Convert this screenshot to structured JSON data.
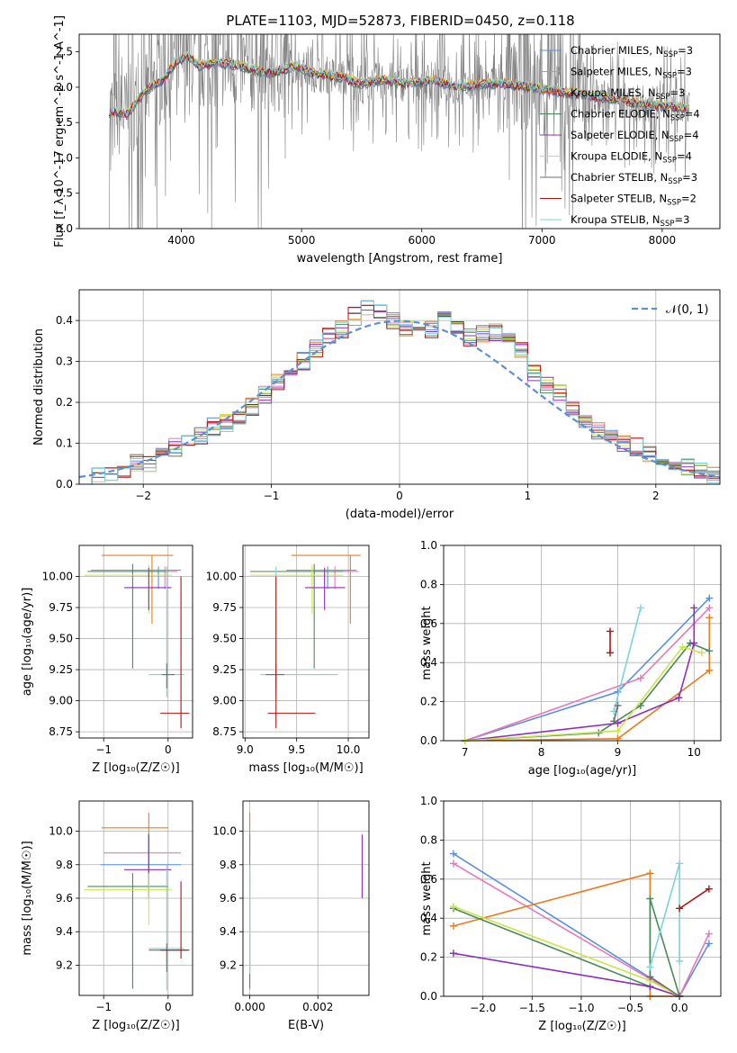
{
  "title": "PLATE=1103, MJD=52873, FIBERID=0450, z=0.118",
  "colors": {
    "chabrier_miles": "#5b8fd9",
    "salpeter_miles": "#e67ab8",
    "kroupa_miles": "#e87d1e",
    "chabrier_elodie": "#4a8a5a",
    "salpeter_elodie": "#8b2fb8",
    "kroupa_elodie": "#c8e64a",
    "chabrier_stelib": "#6e6e6e",
    "salpeter_stelib": "#b01515",
    "kroupa_stelib": "#7bd3dc",
    "data_gray": "#808080"
  },
  "chart_data": [
    {
      "type": "line",
      "xlabel": "wavelength [Angstrom, rest frame]",
      "ylabel": "Flux [f_λ 10^-17 erg cm^-2 s^-1 A^-1]",
      "xlim": [
        3150,
        8480
      ],
      "ylim": [
        0,
        2.75
      ],
      "xticks": [
        "4000",
        "5000",
        "6000",
        "7000",
        "8000"
      ],
      "yticks": [
        "0.0",
        "0.5",
        "1.0",
        "1.5",
        "2.0",
        "2.5"
      ],
      "legend": "right",
      "grid": false,
      "series": [
        {
          "name": "Chabrier MILES, N_SSP=3",
          "label": "Chabrier MILES, N",
          "sub": "SSP",
          "n": "=3",
          "color": "#5b8fd9"
        },
        {
          "name": "Salpeter MILES, N_SSP=3",
          "label": "Salpeter MILES, N",
          "sub": "SSP",
          "n": "=3",
          "color": "#e67ab8"
        },
        {
          "name": "Kroupa MILES, N_SSP=3",
          "label": "Kroupa MILES, N",
          "sub": "SSP",
          "n": "=3",
          "color": "#e87d1e"
        },
        {
          "name": "Chabrier ELODIE, N_SSP=4",
          "label": "Chabrier ELODIE, N",
          "sub": "SSP",
          "n": "=4",
          "color": "#4a8a5a"
        },
        {
          "name": "Salpeter ELODIE, N_SSP=4",
          "label": "Salpeter ELODIE, N",
          "sub": "SSP",
          "n": "=4",
          "color": "#8b2fb8"
        },
        {
          "name": "Kroupa ELODIE, N_SSP=4",
          "label": "Kroupa ELODIE, N",
          "sub": "SSP",
          "n": "=4",
          "color": "#c8e64a"
        },
        {
          "name": "Chabrier STELIB, N_SSP=3",
          "label": "Chabrier STELIB, N",
          "sub": "SSP",
          "n": "=3",
          "color": "#6e6e6e"
        },
        {
          "name": "Salpeter STELIB, N_SSP=2",
          "label": "Salpeter STELIB, N",
          "sub": "SSP",
          "n": "=2",
          "color": "#b01515"
        },
        {
          "name": "Kroupa STELIB, N_SSP=3",
          "label": "Kroupa STELIB, N",
          "sub": "SSP",
          "n": "=3",
          "color": "#7bd3dc"
        }
      ],
      "model_curve": {
        "x": [
          3400,
          3550,
          3700,
          3850,
          3950,
          4050,
          4150,
          4300,
          4500,
          4700,
          4850,
          4950,
          5100,
          5300,
          5500,
          5700,
          5900,
          6100,
          6300,
          6500,
          6700,
          6900,
          7100,
          7300,
          7500,
          7700,
          7900,
          8100,
          8200
        ],
        "y": [
          1.65,
          1.62,
          1.95,
          2.1,
          2.35,
          2.45,
          2.3,
          2.35,
          2.3,
          2.2,
          2.25,
          2.3,
          2.2,
          2.15,
          2.05,
          2.1,
          2.05,
          2.1,
          2.0,
          2.05,
          2.05,
          2.0,
          1.95,
          1.9,
          1.85,
          1.8,
          1.75,
          1.72,
          1.7
        ]
      },
      "model_gaps": [
        [
          3400,
          3850
        ],
        [
          7200,
          7420
        ]
      ]
    },
    {
      "type": "bar",
      "xlabel": "(data-model)/error",
      "ylabel": "Normed distribution",
      "xlim": [
        -2.5,
        2.5
      ],
      "ylim": [
        0,
        0.475
      ],
      "xticks": [
        "−2",
        "−1",
        "0",
        "1",
        "2"
      ],
      "yticks": [
        "0.0",
        "0.1",
        "0.2",
        "0.3",
        "0.4"
      ],
      "grid": true,
      "legend": "top-right",
      "legend_label": "𝒩(0, 1)",
      "bin_width": 0.1,
      "bins_start": -2.5,
      "histogram": [
        0.02,
        0.02,
        0.02,
        0.03,
        0.05,
        0.05,
        0.08,
        0.09,
        0.1,
        0.12,
        0.14,
        0.15,
        0.16,
        0.19,
        0.22,
        0.25,
        0.26,
        0.3,
        0.33,
        0.36,
        0.38,
        0.41,
        0.43,
        0.42,
        0.4,
        0.38,
        0.37,
        0.38,
        0.4,
        0.38,
        0.36,
        0.37,
        0.37,
        0.36,
        0.33,
        0.27,
        0.24,
        0.22,
        0.18,
        0.16,
        0.13,
        0.12,
        0.1,
        0.09,
        0.07,
        0.06,
        0.04,
        0.04,
        0.03,
        0.02
      ]
    },
    {
      "type": "scatter",
      "xlabel": "Z [log₁₀(Z/Z☉)]",
      "ylabel": "age  [log₁₀(age/yr)]",
      "xlim": [
        -1.38,
        0.38
      ],
      "ylim": [
        8.7,
        10.25
      ],
      "xticks": [
        "−1",
        "0"
      ],
      "yticks": [
        "8.75",
        "9.00",
        "9.25",
        "9.50",
        "9.75",
        "10.00"
      ],
      "grid": true,
      "errorbars": [
        {
          "series": 2,
          "x": -0.25,
          "y": 10.17,
          "xe": [
            -1.03,
            0.08
          ],
          "ye": [
            9.62,
            10.17
          ]
        },
        {
          "series": 0,
          "x": -0.15,
          "y": 10.05,
          "xe": [
            -1.2,
            0.2
          ],
          "ye": [
            9.9,
            10.08
          ]
        },
        {
          "series": 1,
          "x": -0.05,
          "y": 10.04,
          "xe": [
            -0.95,
            0.15
          ],
          "ye": [
            9.9,
            10.08
          ]
        },
        {
          "series": 3,
          "x": -0.55,
          "y": 10.04,
          "xe": [
            -1.25,
            0.0
          ],
          "ye": [
            9.26,
            10.1
          ]
        },
        {
          "series": 5,
          "x": -0.3,
          "y": 10.01,
          "xe": [
            -1.3,
            0.05
          ],
          "ye": [
            9.7,
            10.09
          ]
        },
        {
          "series": 4,
          "x": -0.3,
          "y": 9.91,
          "xe": [
            -0.68,
            0.05
          ],
          "ye": [
            9.73,
            10.07
          ]
        },
        {
          "series": 8,
          "x": -0.02,
          "y": 9.21,
          "xe": [
            -0.3,
            0.25
          ],
          "ye": [
            9.03,
            10.08
          ]
        },
        {
          "series": 6,
          "x": -0.02,
          "y": 9.21,
          "xe": [
            -0.1,
            0.1
          ],
          "ye": [
            9.1,
            9.3
          ]
        },
        {
          "series": 7,
          "x": 0.2,
          "y": 8.9,
          "xe": [
            -0.12,
            0.33
          ],
          "ye": [
            8.78,
            10.0
          ]
        }
      ]
    },
    {
      "type": "scatter",
      "xlabel": "mass [log₁₀(M/M☉)]",
      "ylabel": "",
      "xlim": [
        8.98,
        10.2
      ],
      "ylim": [
        8.7,
        10.25
      ],
      "xticks": [
        "9.0",
        "9.5",
        "10.0"
      ],
      "yticks": [
        "8.75",
        "9.00",
        "9.25",
        "9.50",
        "9.75",
        "10.00"
      ],
      "grid": true,
      "errorbars": [
        {
          "series": 2,
          "x": 10.02,
          "y": 10.17,
          "xe": [
            9.45,
            10.12
          ],
          "ye": [
            9.62,
            10.17
          ]
        },
        {
          "series": 0,
          "x": 9.8,
          "y": 10.05,
          "xe": [
            9.4,
            10.08
          ],
          "ye": [
            9.9,
            10.08
          ]
        },
        {
          "series": 1,
          "x": 9.87,
          "y": 10.04,
          "xe": [
            9.6,
            10.1
          ],
          "ye": [
            9.9,
            10.08
          ]
        },
        {
          "series": 3,
          "x": 9.67,
          "y": 10.04,
          "xe": [
            9.05,
            9.95
          ],
          "ye": [
            9.26,
            10.1
          ]
        },
        {
          "series": 5,
          "x": 9.65,
          "y": 10.01,
          "xe": [
            9.05,
            9.95
          ],
          "ye": [
            9.7,
            10.09
          ]
        },
        {
          "series": 4,
          "x": 9.77,
          "y": 9.91,
          "xe": [
            9.58,
            9.97
          ],
          "ye": [
            9.73,
            10.07
          ]
        },
        {
          "series": 8,
          "x": 9.3,
          "y": 9.21,
          "xe": [
            9.15,
            9.9
          ],
          "ye": [
            9.03,
            10.08
          ]
        },
        {
          "series": 6,
          "x": 9.3,
          "y": 9.21,
          "xe": [
            9.2,
            9.38
          ],
          "ye": [
            9.1,
            9.3
          ]
        },
        {
          "series": 7,
          "x": 9.3,
          "y": 8.9,
          "xe": [
            9.22,
            9.68
          ],
          "ye": [
            8.78,
            10.0
          ]
        }
      ]
    },
    {
      "type": "line",
      "xlabel": "age  [log₁₀(age/yr)]",
      "ylabel": "mass weight",
      "xlim": [
        6.72,
        10.35
      ],
      "ylim": [
        0,
        1.0
      ],
      "xticks": [
        "7",
        "8",
        "9",
        "10"
      ],
      "yticks": [
        "0.0",
        "0.2",
        "0.4",
        "0.6",
        "0.8",
        "1.0"
      ],
      "grid": true,
      "series": [
        {
          "series": 0,
          "x": [
            7.0,
            9.0,
            10.2
          ],
          "y": [
            0.0,
            0.25,
            0.73
          ]
        },
        {
          "series": 1,
          "x": [
            7.0,
            9.3,
            10.2
          ],
          "y": [
            0.0,
            0.32,
            0.68
          ]
        },
        {
          "series": 2,
          "x": [
            7.0,
            9.0,
            10.2,
            10.2
          ],
          "y": [
            0.0,
            0.01,
            0.36,
            0.63
          ]
        },
        {
          "series": 3,
          "x": [
            7.0,
            8.75,
            9.3,
            9.95,
            10.2
          ],
          "y": [
            0.0,
            0.04,
            0.18,
            0.5,
            0.46
          ]
        },
        {
          "series": 4,
          "x": [
            7.0,
            9.0,
            9.8,
            10.0,
            10.0
          ],
          "y": [
            0.0,
            0.09,
            0.22,
            0.5,
            0.68
          ]
        },
        {
          "series": 5,
          "x": [
            7.0,
            9.0,
            9.85,
            10.1
          ],
          "y": [
            0.0,
            0.05,
            0.48,
            0.45
          ]
        },
        {
          "series": 8,
          "x": [
            8.95,
            9.3
          ],
          "y": [
            0.15,
            0.68
          ]
        },
        {
          "series": 6,
          "x": [
            8.95,
            9.0
          ],
          "y": [
            0.1,
            0.18
          ]
        },
        {
          "series": 7,
          "x": [
            8.9,
            8.9
          ],
          "y": [
            0.45,
            0.56
          ]
        }
      ]
    },
    {
      "type": "scatter",
      "xlabel": "Z [log₁₀(Z/Z☉)]",
      "ylabel": "mass [log₁₀(M/M☉)]",
      "xlim": [
        -1.38,
        0.38
      ],
      "ylim": [
        9.02,
        10.18
      ],
      "xticks": [
        "−1",
        "0"
      ],
      "yticks": [
        "9.2",
        "9.4",
        "9.6",
        "9.8",
        "10.0"
      ],
      "grid": true,
      "errorbars": [
        {
          "series": 2,
          "x": -0.3,
          "y": 10.02,
          "xe": [
            -1.03,
            0.0
          ],
          "ye": [
            9.86,
            10.11
          ]
        },
        {
          "series": 1,
          "x": -0.3,
          "y": 9.87,
          "xe": [
            -1.0,
            0.2
          ],
          "ye": [
            9.7,
            9.98
          ]
        },
        {
          "series": 0,
          "x": -0.3,
          "y": 9.8,
          "xe": [
            -1.05,
            0.2
          ],
          "ye": [
            9.66,
            9.98
          ]
        },
        {
          "series": 4,
          "x": -0.3,
          "y": 9.77,
          "xe": [
            -0.68,
            0.05
          ],
          "ye": [
            9.6,
            9.98
          ]
        },
        {
          "series": 3,
          "x": -0.55,
          "y": 9.67,
          "xe": [
            -1.25,
            0.0
          ],
          "ye": [
            9.06,
            9.75
          ]
        },
        {
          "series": 5,
          "x": -0.3,
          "y": 9.65,
          "xe": [
            -1.3,
            0.05
          ],
          "ye": [
            9.44,
            9.75
          ]
        },
        {
          "series": 8,
          "x": -0.02,
          "y": 9.3,
          "xe": [
            -0.3,
            0.25
          ],
          "ye": [
            9.05,
            9.8
          ]
        },
        {
          "series": 6,
          "x": -0.02,
          "y": 9.29,
          "xe": [
            -0.3,
            0.3
          ],
          "ye": [
            9.16,
            9.33
          ]
        },
        {
          "series": 7,
          "x": 0.2,
          "y": 9.29,
          "xe": [
            -0.12,
            0.33
          ],
          "ye": [
            9.24,
            9.7
          ]
        }
      ]
    },
    {
      "type": "scatter",
      "xlabel": "E(B-V)",
      "ylabel": "",
      "xlim": [
        -0.0002,
        0.0035
      ],
      "ylim": [
        9.02,
        10.18
      ],
      "xticks": [
        "0.000",
        "0.002"
      ],
      "yticks": [
        "9.2",
        "9.4",
        "9.6",
        "9.8",
        "10.0"
      ],
      "grid": true,
      "errorbars": [
        {
          "series": 2,
          "x": 0.0,
          "y": 10.02,
          "ye": [
            9.86,
            10.11
          ]
        },
        {
          "series": 0,
          "x": 0.0,
          "y": 9.8,
          "ye": [
            9.66,
            9.98
          ]
        },
        {
          "series": 3,
          "x": 0.0,
          "y": 9.67,
          "ye": [
            9.06,
            9.75
          ]
        },
        {
          "series": 8,
          "x": 0.0,
          "y": 9.3,
          "ye": [
            9.15,
            9.8
          ]
        },
        {
          "series": 4,
          "x": 0.0033,
          "y": 9.79,
          "ye": [
            9.6,
            9.98
          ]
        }
      ]
    },
    {
      "type": "line",
      "xlabel": "Z [log₁₀(Z/Z☉)]",
      "ylabel": "mass weight",
      "xlim": [
        -2.4,
        0.42
      ],
      "ylim": [
        0,
        1.0
      ],
      "xticks": [
        "−2.0",
        "−1.5",
        "−1.0",
        "−0.5",
        "0.0"
      ],
      "yticks": [
        "0.0",
        "0.2",
        "0.4",
        "0.6",
        "0.8",
        "1.0"
      ],
      "grid": true,
      "series": [
        {
          "series": 0,
          "x": [
            -2.3,
            0.0,
            0.3
          ],
          "y": [
            0.73,
            0.0,
            0.27
          ]
        },
        {
          "series": 1,
          "x": [
            -2.3,
            0.0,
            0.3
          ],
          "y": [
            0.68,
            0.0,
            0.32
          ]
        },
        {
          "series": 2,
          "x": [
            -2.3,
            -0.3,
            -0.3,
            0.0
          ],
          "y": [
            0.36,
            0.63,
            0.0,
            0.0
          ]
        },
        {
          "series": 3,
          "x": [
            -2.3,
            -0.3,
            -0.3,
            0.0
          ],
          "y": [
            0.45,
            0.05,
            0.5,
            0.0
          ]
        },
        {
          "series": 4,
          "x": [
            -2.3,
            -0.3,
            0.0
          ],
          "y": [
            0.22,
            0.05,
            0.0
          ]
        },
        {
          "series": 5,
          "x": [
            -2.3,
            -0.3,
            0.0
          ],
          "y": [
            0.46,
            0.08,
            0.0
          ]
        },
        {
          "series": 8,
          "x": [
            -0.3,
            0.0,
            0.0
          ],
          "y": [
            0.15,
            0.68,
            0.18
          ]
        },
        {
          "series": 6,
          "x": [
            -0.3,
            0.0
          ],
          "y": [
            0.1,
            0.0
          ]
        },
        {
          "series": 7,
          "x": [
            0.0,
            0.3
          ],
          "y": [
            0.45,
            0.55
          ]
        }
      ]
    }
  ]
}
